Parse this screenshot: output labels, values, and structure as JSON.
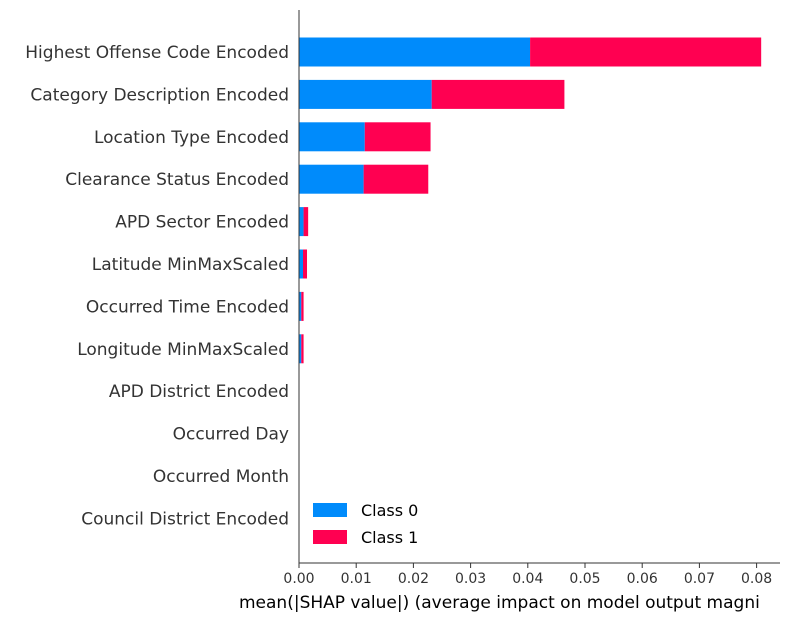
{
  "chart_data": {
    "type": "bar",
    "orientation": "horizontal",
    "stacked": true,
    "categories": [
      "Highest Offense Code Encoded",
      "Category Description Encoded",
      "Location Type Encoded",
      "Clearance Status Encoded",
      "APD Sector Encoded",
      "Latitude MinMaxScaled",
      "Occurred Time Encoded",
      "Longitude MinMaxScaled",
      "APD District Encoded",
      "Occurred Day",
      "Occurred Month",
      "Council District Encoded"
    ],
    "series": [
      {
        "name": "Class 0",
        "color": "#008bfb",
        "values": [
          0.0404,
          0.0232,
          0.0115,
          0.0113,
          0.0008,
          0.0007,
          0.0004,
          0.0004,
          0.0,
          0.0,
          0.0,
          0.0
        ]
      },
      {
        "name": "Class 1",
        "color": "#ff0051",
        "values": [
          0.0404,
          0.0232,
          0.0115,
          0.0113,
          0.0008,
          0.0007,
          0.0004,
          0.0004,
          0.0,
          0.0,
          0.0,
          0.0
        ]
      }
    ],
    "xlabel": "mean(|SHAP value|) (average impact on model output magni",
    "ylabel": "",
    "xlim": [
      0.0,
      0.085
    ],
    "xticks": [
      0.0,
      0.01,
      0.02,
      0.03,
      0.04,
      0.05,
      0.06,
      0.07,
      0.08
    ],
    "xtick_labels": [
      "0.00",
      "0.01",
      "0.02",
      "0.03",
      "0.04",
      "0.05",
      "0.06",
      "0.07",
      "0.08"
    ],
    "grid": false,
    "legend_position": "bottom-left"
  }
}
